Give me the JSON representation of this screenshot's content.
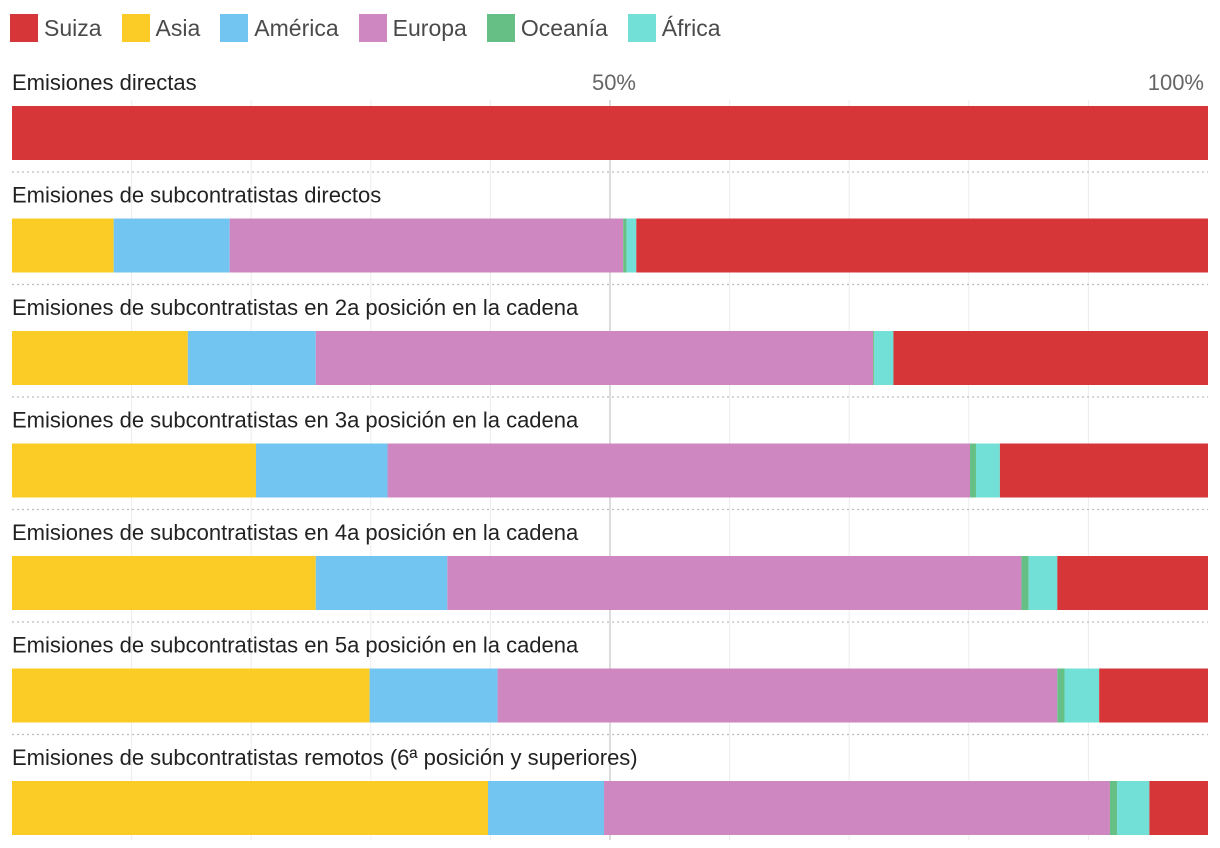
{
  "chart_data": {
    "type": "bar",
    "orientation": "horizontal",
    "stacked": true,
    "normalized": true,
    "title": "",
    "xlim": [
      0,
      100
    ],
    "ticks": [
      {
        "value": 50,
        "label": "50%"
      },
      {
        "value": 100,
        "label": "100%"
      }
    ],
    "grid": true,
    "legend_position": "top-left",
    "series": [
      {
        "name": "Suiza",
        "color": "#d63638"
      },
      {
        "name": "Asia",
        "color": "#fccc26"
      },
      {
        "name": "América",
        "color": "#72c5f1"
      },
      {
        "name": "Europa",
        "color": "#cf87c2"
      },
      {
        "name": "Oceanía",
        "color": "#66c086"
      },
      {
        "name": "África",
        "color": "#72e0d6"
      }
    ],
    "stack_order": [
      "Asia",
      "América",
      "Europa",
      "Oceanía",
      "África",
      "Suiza"
    ],
    "rows": [
      {
        "label": "Emisiones directas",
        "values": {
          "Asia": 0,
          "América": 0,
          "Europa": 0,
          "Oceanía": 0,
          "África": 0,
          "Suiza": 100
        }
      },
      {
        "label": "Emisiones de subcontratistas directos",
        "values": {
          "Asia": 8.5,
          "América": 9.7,
          "Europa": 32.9,
          "Oceanía": 0.3,
          "África": 0.8,
          "Suiza": 47.8
        }
      },
      {
        "label": "Emisiones de subcontratistas en 2a posición en la cadena",
        "values": {
          "Asia": 14.7,
          "América": 10.7,
          "Europa": 46.6,
          "Oceanía": 0.1,
          "África": 1.6,
          "Suiza": 26.3
        }
      },
      {
        "label": "Emisiones de subcontratistas en 3a posición en la cadena",
        "values": {
          "Asia": 20.4,
          "América": 11.0,
          "Europa": 48.7,
          "Oceanía": 0.5,
          "África": 2.0,
          "Suiza": 17.4
        }
      },
      {
        "label": "Emisiones de subcontratistas en 4a posición en la cadena",
        "values": {
          "Asia": 25.4,
          "América": 11.0,
          "Europa": 48.0,
          "Oceanía": 0.6,
          "África": 2.4,
          "Suiza": 12.6
        }
      },
      {
        "label": "Emisiones de subcontratistas en 5a posición en la cadena",
        "values": {
          "Asia": 29.9,
          "América": 10.7,
          "Europa": 46.8,
          "Oceanía": 0.6,
          "África": 2.9,
          "Suiza": 9.1
        }
      },
      {
        "label": "Emisiones de subcontratistas remotos (6ª posición y superiores)",
        "values": {
          "Asia": 39.8,
          "América": 9.7,
          "Europa": 42.3,
          "Oceanía": 0.6,
          "África": 2.7,
          "Suiza": 4.9
        }
      }
    ]
  }
}
